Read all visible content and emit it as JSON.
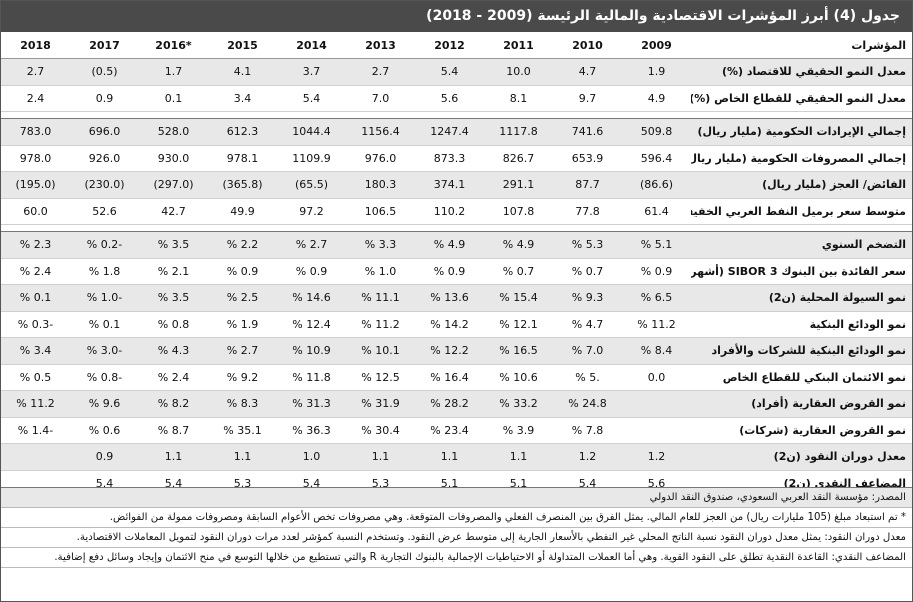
{
  "title": "جدول (4) أبرز المؤشرات الاقتصادية والمالية الرئيسة (2009 - 2018)",
  "header": [
    "المؤشرات",
    "2009",
    "2010",
    "2011",
    "2012",
    "2013",
    "2014",
    "2015",
    "*2016",
    "2017",
    "2018"
  ],
  "groups": [
    {
      "rows": [
        {
          "label": "معدل النمو الحقيقي للاقتصاد (%)",
          "values": [
            "1.9",
            "4.7",
            "10.0",
            "5.4",
            "2.7",
            "3.7",
            "4.1",
            "1.7",
            "(0.5)",
            "2.7"
          ]
        },
        {
          "label": "معدل النمو الحقيقي للقطاع الخاص (%)",
          "values": [
            "4.9",
            "9.7",
            "8.1",
            "5.6",
            "7.0",
            "5.4",
            "3.4",
            "0.1",
            "0.9",
            "2.4"
          ]
        }
      ]
    },
    {
      "rows": [
        {
          "label": "إجمالي الإيرادات الحكومية (مليار ريال)",
          "values": [
            "509.8",
            "741.6",
            "1117.8",
            "1247.4",
            "1156.4",
            "1044.4",
            "612.3",
            "528.0",
            "696.0",
            "783.0"
          ]
        },
        {
          "label": "إجمالي المصروفات الحكومية (مليار ريال)",
          "values": [
            "596.4",
            "653.9",
            "826.7",
            "873.3",
            "976.0",
            "1109.9",
            "978.1",
            "930.0",
            "926.0",
            "978.0"
          ]
        },
        {
          "label": "الفائض/ العجز (مليار ريال)",
          "values": [
            "(86.6)",
            "87.7",
            "291.1",
            "374.1",
            "180.3",
            "(65.5)",
            "(365.8)",
            "(297.0)",
            "(230.0)",
            "(195.0)"
          ]
        },
        {
          "label": "متوسط سعر برميل النفط العربي الخفيف $",
          "values": [
            "61.4",
            "77.8",
            "107.8",
            "110.2",
            "106.5",
            "97.2",
            "49.9",
            "42.7",
            "52.6",
            "60.0"
          ]
        }
      ]
    },
    {
      "rows": [
        {
          "label": "التضخم السنوي",
          "values": [
            "5.1 %",
            "5.3 %",
            "4.9 %",
            "4.9 %",
            "3.3 %",
            "2.7 %",
            "2.2 %",
            "3.5 %",
            "-0.2 %",
            "2.3 %"
          ]
        },
        {
          "label": "سعر الفائدة بين البنوك SIBOR 3 (أشهر)",
          "values": [
            "0.9 %",
            "0.7 %",
            "0.7 %",
            "0.9 %",
            "1.0 %",
            "0.9 %",
            "0.9 %",
            "2.1 %",
            "1.8 %",
            "2.4 %"
          ]
        },
        {
          "label": "نمو السيولة المحلية (ن2)",
          "values": [
            "6.5 %",
            "9.3 %",
            "15.4 %",
            "13.6 %",
            "11.1 %",
            "14.6 %",
            "2.5 %",
            "3.5 %",
            "-1.0 %",
            "0.1 %"
          ]
        },
        {
          "label": "نمو الودائع البنكية",
          "values": [
            "11.2 %",
            "4.7 %",
            "12.1 %",
            "14.2 %",
            "11.2 %",
            "12.4 %",
            "1.9 %",
            "0.8 %",
            "0.1 %",
            "-0.3 %"
          ]
        },
        {
          "label": "نمو الودائع البنكية للشركات والأفراد",
          "values": [
            "8.4 %",
            "7.0 %",
            "16.5 %",
            "12.2 %",
            "10.1 %",
            "10.9 %",
            "2.7 %",
            "4.3 %",
            "-3.0 %",
            "3.4 %"
          ]
        },
        {
          "label": "نمو الائتمان البنكي للقطاع الخاص",
          "values": [
            "0.0",
            ".5 %",
            "10.6 %",
            "16.4 %",
            "12.5 %",
            "11.8 %",
            "9.2 %",
            "2.4 %",
            "-0.8 %",
            "0.5 %"
          ]
        },
        {
          "label": "نمو القروض العقارية (أفراد)",
          "values": [
            null,
            "24.8 %",
            "33.2 %",
            "28.2 %",
            "31.9 %",
            "31.3 %",
            "8.3 %",
            "8.2 %",
            "9.6 %",
            "11.2 %"
          ]
        },
        {
          "label": "نمو القروض العقارية (شركات)",
          "values": [
            null,
            "7.8 %",
            "3.9 %",
            "23.4 %",
            "30.4 %",
            "36.3 %",
            "35.1 %",
            "8.7 %",
            "0.6 %",
            "-1.4 %"
          ]
        },
        {
          "label": "معدل دوران النقود (ن2)",
          "values": [
            "1.2",
            "1.2",
            "1.1",
            "1.1",
            "1.1",
            "1.0",
            "1.1",
            "1.1",
            "0.9",
            null
          ]
        },
        {
          "label": "المضاعف النقدي (ن2)",
          "values": [
            "5.6",
            "5.4",
            "5.1",
            "5.1",
            "5.3",
            "5.4",
            "5.3",
            "5.4",
            "5.4",
            null
          ]
        }
      ]
    }
  ],
  "notes": [
    "المصدر: مؤسسة النقد العربي السعودي، صندوق النقد الدولي",
    "* تم استبعاد مبلغ (105 مليارات ريال) من العجز للعام المالي. يمثل الفرق بين المنصرف الفعلي والمصروفات المتوقعة. وهي مصروفات تخص الأعوام السابقة ومصروفات ممولة من الفوائض.",
    "معدل دوران النقود: يمثل معدل دوران النقود نسبة الناتج المحلي غير النفطي بالأسعار الجارية إلى متوسط عرض النقود. وتستخدم النسبة كمؤشر لعدد مرات دوران النقود لتمويل المعاملات الاقتصادية.",
    "المضاعف النقدي: القاعدة النقدية تطلق على النقود القوية. وهي أما العملات المتداولة أو الاحتياطيات الإجمالية بالبنوك التجارية R والتي تستطيع من خلالها التوسع في منح الائتمان وإيجاد وسائل دفع إضافية."
  ]
}
